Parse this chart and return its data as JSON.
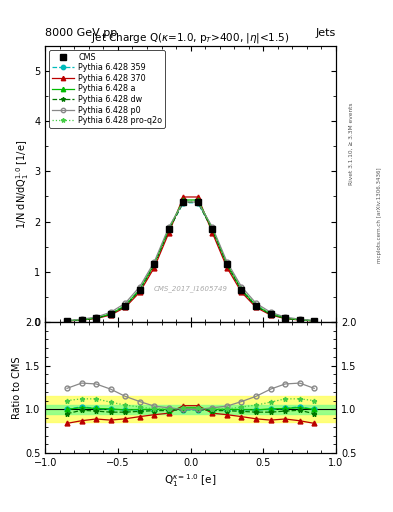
{
  "title": "Jet Charge Q(κ=1.0, p_{T}>400, |η|<1.5)",
  "header_left": "8000 GeV pp",
  "header_right": "Jets",
  "right_label_top": "Rivet 3.1.10, ≥ 3.3M events",
  "right_label_bot": "mcplots.cern.ch [arXiv:1306.3436]",
  "watermark": "CMS_2017_I1605749",
  "xlim": [
    -1.0,
    1.0
  ],
  "ylim_main": [
    0,
    5.5
  ],
  "ylim_ratio": [
    0.5,
    2.0
  ],
  "x_vals": [
    -0.85,
    -0.75,
    -0.65,
    -0.55,
    -0.45,
    -0.35,
    -0.25,
    -0.15,
    -0.05,
    0.05,
    0.15,
    0.25,
    0.35,
    0.45,
    0.55,
    0.65,
    0.75,
    0.85
  ],
  "cms_vals": [
    0.02,
    0.04,
    0.073,
    0.155,
    0.322,
    0.643,
    1.152,
    1.855,
    2.39,
    2.39,
    1.855,
    1.152,
    0.643,
    0.322,
    0.155,
    0.073,
    0.04,
    0.02
  ],
  "py359_vals": [
    0.02,
    0.041,
    0.074,
    0.155,
    0.32,
    0.64,
    1.148,
    1.845,
    2.375,
    2.375,
    1.845,
    1.148,
    0.64,
    0.32,
    0.155,
    0.074,
    0.041,
    0.02
  ],
  "py370_vals": [
    0.017,
    0.035,
    0.065,
    0.136,
    0.287,
    0.59,
    1.082,
    1.774,
    2.49,
    2.49,
    1.774,
    1.082,
    0.59,
    0.287,
    0.136,
    0.065,
    0.035,
    0.017
  ],
  "pya_vals": [
    0.02,
    0.041,
    0.074,
    0.156,
    0.32,
    0.642,
    1.152,
    1.852,
    2.43,
    2.43,
    1.852,
    1.152,
    0.642,
    0.32,
    0.156,
    0.074,
    0.041,
    0.02
  ],
  "pydw_vals": [
    0.019,
    0.04,
    0.072,
    0.15,
    0.312,
    0.628,
    1.135,
    1.83,
    2.385,
    2.385,
    1.83,
    1.135,
    0.628,
    0.312,
    0.15,
    0.072,
    0.04,
    0.019
  ],
  "pyp0_vals": [
    0.025,
    0.052,
    0.094,
    0.191,
    0.37,
    0.7,
    1.195,
    1.888,
    2.39,
    2.39,
    1.888,
    1.195,
    0.7,
    0.37,
    0.191,
    0.094,
    0.052,
    0.025
  ],
  "pyq2o_vals": [
    0.022,
    0.045,
    0.082,
    0.168,
    0.338,
    0.66,
    1.158,
    1.86,
    2.415,
    2.415,
    1.86,
    1.158,
    0.66,
    0.338,
    0.168,
    0.082,
    0.045,
    0.022
  ],
  "ratio_py359": [
    1.0,
    1.03,
    1.01,
    1.0,
    0.993,
    0.995,
    0.996,
    0.994,
    0.994,
    0.994,
    0.994,
    0.996,
    0.995,
    0.993,
    1.0,
    1.01,
    1.03,
    1.0
  ],
  "ratio_py370": [
    0.84,
    0.87,
    0.89,
    0.877,
    0.892,
    0.917,
    0.939,
    0.956,
    1.042,
    1.042,
    0.956,
    0.939,
    0.917,
    0.892,
    0.877,
    0.89,
    0.87,
    0.84
  ],
  "ratio_pya": [
    1.0,
    1.02,
    1.01,
    1.005,
    0.993,
    0.998,
    1.0,
    0.998,
    1.017,
    1.017,
    0.998,
    1.0,
    0.998,
    0.993,
    1.005,
    1.01,
    1.02,
    1.0
  ],
  "ratio_pydw": [
    0.95,
    0.99,
    0.98,
    0.968,
    0.968,
    0.977,
    0.985,
    0.986,
    0.998,
    0.998,
    0.986,
    0.985,
    0.977,
    0.968,
    0.968,
    0.98,
    0.99,
    0.95
  ],
  "ratio_pyp0": [
    1.24,
    1.3,
    1.29,
    1.231,
    1.149,
    1.089,
    1.037,
    1.018,
    1.0,
    1.0,
    1.018,
    1.037,
    1.089,
    1.149,
    1.231,
    1.29,
    1.3,
    1.24
  ],
  "ratio_pyq2o": [
    1.1,
    1.12,
    1.12,
    1.082,
    1.049,
    1.027,
    1.005,
    1.003,
    1.01,
    1.01,
    1.003,
    1.005,
    1.027,
    1.049,
    1.082,
    1.12,
    1.12,
    1.1
  ],
  "cms_ratio_err_green": 0.05,
  "cms_ratio_err_yellow": 0.15,
  "color_cms": "#000000",
  "color_py359": "#00BBBB",
  "color_py370": "#BB0000",
  "color_pya": "#00BB00",
  "color_pydw": "#007700",
  "color_pyp0": "#888888",
  "color_pyq2o": "#44CC44",
  "bg_color": "#ffffff"
}
